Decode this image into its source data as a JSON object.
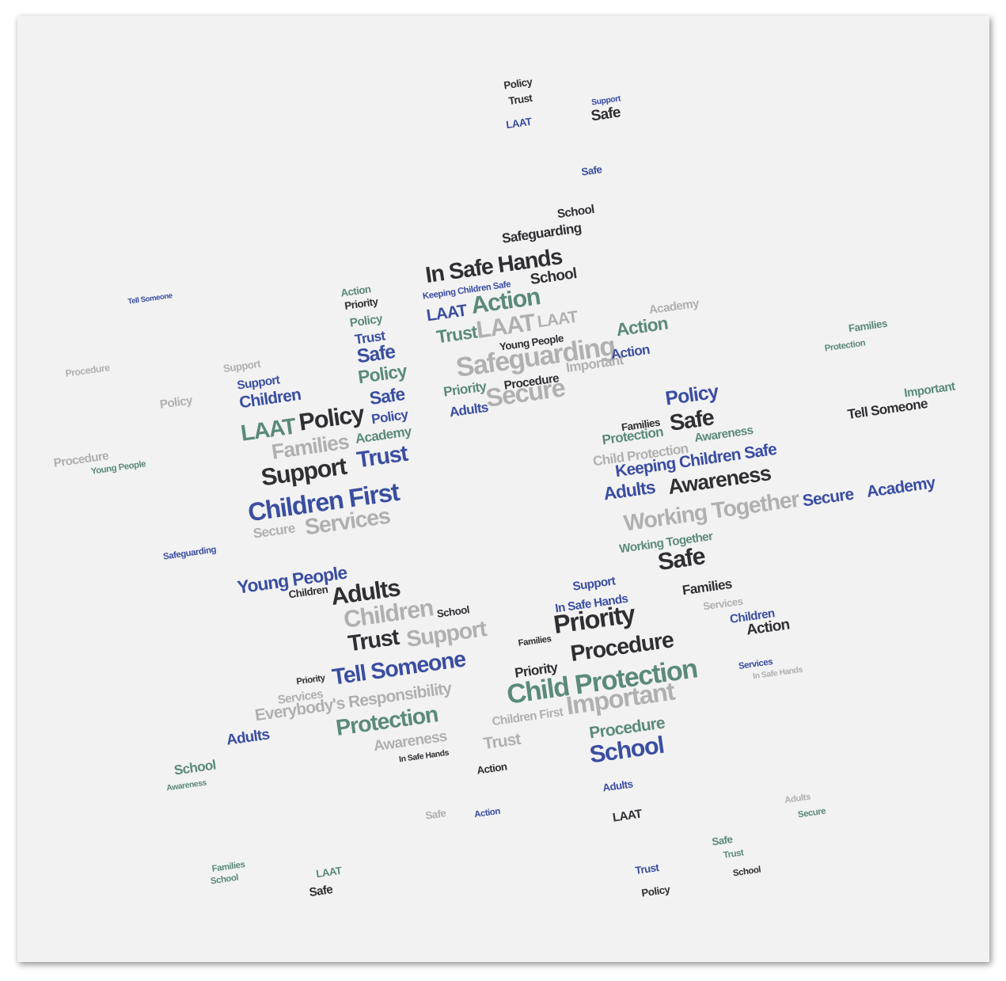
{
  "words": [
    "In Safe Hands",
    "Safeguarding",
    "School",
    "LAAT",
    "Action",
    "Trust",
    "LAAT",
    "LAAT",
    "Young People",
    "Safeguarding",
    "Important",
    "Action",
    "Action",
    "Secure",
    "Priority",
    "Adults",
    "Procedure",
    "Keeping Children Safe",
    "Safe",
    "Policy",
    "Trust",
    "LAAT",
    "Support",
    "School",
    "Safe",
    "Academy",
    "Families",
    "Protection",
    "LAAT",
    "Policy",
    "Families",
    "Academy",
    "Support",
    "Trust",
    "Children First",
    "Services",
    "Secure",
    "Children",
    "Safe",
    "Policy",
    "Safe",
    "Policy",
    "Trust",
    "Policy",
    "Priority",
    "Action",
    "Support",
    "Support",
    "Procedure",
    "Young People",
    "Policy",
    "Procedure",
    "Safeguarding",
    "Tell Someone",
    "Policy",
    "Safe",
    "Families",
    "Protection",
    "Child Protection",
    "Awareness",
    "Keeping Children Safe",
    "Adults",
    "Awareness",
    "Working Together",
    "Secure",
    "Academy",
    "Tell Someone",
    "Important",
    "Working Together",
    "Safe",
    "Families",
    "Services",
    "Children",
    "Action",
    "Services",
    "In Safe Hands",
    "Young People",
    "Adults",
    "Children",
    "Children",
    "School",
    "Trust",
    "Support",
    "Tell Someone",
    "Priority",
    "Services",
    "Everybody's Responsibility",
    "Protection",
    "Awareness",
    "In Safe Hands",
    "Adults",
    "School",
    "Awareness",
    "Support",
    "In Safe Hands",
    "Priority",
    "Families",
    "Procedure",
    "Priority",
    "Child Protection",
    "Children First",
    "Important",
    "Procedure",
    "School",
    "Trust",
    "Action",
    "Adults",
    "LAAT",
    "Action",
    "Safe",
    "Policy",
    "Trust",
    "Safe",
    "LAAT",
    "School",
    "Families",
    "Secure",
    "Safe",
    "Trust",
    "School",
    "Adults"
  ]
}
